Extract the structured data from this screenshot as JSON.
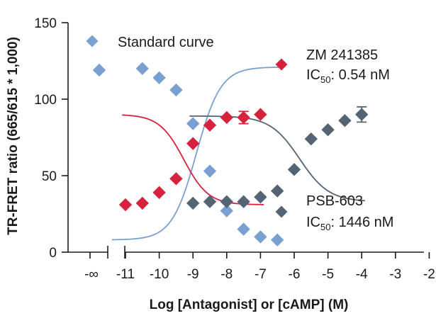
{
  "chart_data": {
    "type": "scatter",
    "title": "",
    "xlabel": "Log [Antagonist] or [cAMP] (M)",
    "ylabel": "TR-FRET ratio (665/615 * 1,000)",
    "xlim": [
      -12,
      -2
    ],
    "ylim": [
      0,
      150
    ],
    "x_ticks": [
      -11,
      -10,
      -9,
      -8,
      -7,
      -6,
      -5,
      -4,
      -3,
      -2
    ],
    "x_tick_labels": [
      "-11",
      "-10",
      "-9",
      "-8",
      "-7",
      "-6",
      "-5",
      "-4",
      "-3",
      "-2"
    ],
    "x_break_label": "-∞",
    "y_ticks": [
      0,
      50,
      100,
      150
    ],
    "y_tick_labels": [
      "0",
      "50",
      "100",
      "150"
    ],
    "series": [
      {
        "name": "Standard curve",
        "color": "#7a9fd1",
        "marker": "diamond",
        "zero_point": 119,
        "x": [
          -10.5,
          -10.0,
          -9.5,
          -9.0,
          -8.5,
          -8.0,
          -7.5,
          -7.0,
          -6.5
        ],
        "y": [
          120,
          114,
          106,
          84,
          53,
          27,
          15,
          10,
          8
        ],
        "errors": [
          0,
          0,
          0,
          0,
          0,
          0,
          0,
          0,
          0
        ],
        "fit": {
          "bottom": 8,
          "top": 121,
          "logEC50": -8.9,
          "hill": -1.2
        },
        "legend": {
          "label": "Standard curve",
          "sublabel_prefix": "",
          "sublabel_sub": "",
          "sublabel_suffix": ""
        }
      },
      {
        "name": "ZM 241385",
        "color": "#d6223d",
        "marker": "diamond",
        "x": [
          -11.0,
          -10.5,
          -10.0,
          -9.5,
          -9.0,
          -8.5,
          -8.0,
          -7.5,
          -7.0
        ],
        "y": [
          31,
          32,
          39,
          48,
          71,
          83,
          88,
          88,
          90
        ],
        "errors": [
          0,
          0,
          0,
          0,
          0,
          0,
          0,
          4,
          0
        ],
        "fit": {
          "bottom": 31,
          "top": 90,
          "logEC50": -9.27,
          "hill": 1.2
        },
        "legend": {
          "label": "ZM 241385",
          "sublabel_prefix": "IC",
          "sublabel_sub": "50",
          "sublabel_suffix": ": 0.54 nM"
        }
      },
      {
        "name": "PSB-603",
        "color": "#546473",
        "marker": "diamond",
        "x": [
          -9.0,
          -8.5,
          -8.0,
          -7.5,
          -7.0,
          -6.5,
          -6.0,
          -5.5,
          -5.0,
          -4.5,
          -4.0
        ],
        "y": [
          32,
          33,
          33,
          33,
          36,
          40,
          54,
          74,
          80,
          86,
          90
        ],
        "errors": [
          0,
          0,
          0,
          0,
          0,
          0,
          0,
          0,
          0,
          0,
          5
        ],
        "fit": {
          "bottom": 33,
          "top": 89,
          "logEC50": -5.84,
          "hill": 1.0
        },
        "legend": {
          "label": "PSB-603",
          "sublabel_prefix": "IC",
          "sublabel_sub": "50",
          "sublabel_suffix": ": 1446 nM"
        }
      }
    ]
  }
}
